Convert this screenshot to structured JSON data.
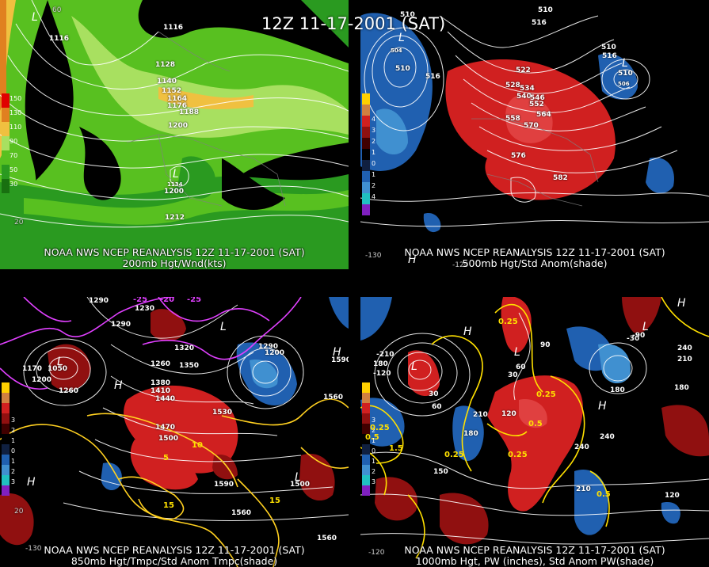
{
  "title": "12Z 11-17-2001 (SAT)",
  "panels": [
    {
      "line1": "NOAA NWS NCEP REANALYSIS 12Z 11-17-2001 (SAT)",
      "line2": "200mb Hgt/Wnd(kts)",
      "scale": [
        "150",
        "130",
        "110",
        "90",
        "70",
        "50",
        "30"
      ],
      "contour_labels": [
        "1116",
        "1116",
        "1128",
        "1140",
        "1152",
        "1164",
        "1176",
        "1188",
        "1200",
        "1200",
        "1212",
        "1134",
        "1200"
      ],
      "lat_labels": [
        "60",
        "20"
      ]
    },
    {
      "line1": "NOAA NWS NCEP REANALYSIS 12Z 11-17-2001 (SAT)",
      "line2": "500mb Hgt/Std Anom(shade)",
      "scale": [
        "5",
        "4",
        "3",
        "2",
        "1",
        "0",
        "1",
        "2",
        "3",
        "4",
        "5"
      ],
      "contour_labels": [
        "510",
        "516",
        "510",
        "504",
        "510",
        "516",
        "522",
        "528",
        "534",
        "540",
        "546",
        "552",
        "558",
        "564",
        "570",
        "576",
        "582",
        "510",
        "516",
        "510",
        "506"
      ],
      "lat_labels": [
        "-130",
        "-120"
      ]
    },
    {
      "line1": "NOAA NWS NCEP REANALYSIS 12Z 11-17-2001 (SAT)",
      "line2": "850mb Hgt/Tmpc/Std Anom Tmpc(shade)",
      "scale": [
        "5",
        "4",
        "3",
        "2",
        "1",
        "0",
        "1",
        "2",
        "3",
        "4",
        "5"
      ],
      "contour_labels": [
        "1290",
        "1290",
        "1230",
        "1320",
        "1260",
        "1350",
        "1380",
        "1410",
        "1440",
        "1470",
        "1500",
        "1530",
        "1560",
        "1590",
        "1500",
        "1560",
        "1290",
        "1170",
        "1050",
        "1200",
        "1260",
        "1200",
        "1590",
        "1560"
      ],
      "temp_labels": [
        "-25",
        "-20",
        "-25",
        "15",
        "10",
        "5",
        "15"
      ],
      "lat_labels": [
        "20",
        "-130"
      ]
    },
    {
      "line1": "NOAA NWS NCEP REANALYSIS 12Z 11-17-2001 (SAT)",
      "line2": "1000mb Hgt, PW (inches), Std Anom PW(shade)",
      "scale": [
        "5",
        "4",
        "3",
        "2",
        "1",
        "0",
        "1",
        "2",
        "3",
        "4",
        "5"
      ],
      "contour_labels": [
        "-210",
        "180",
        "-120",
        "30",
        "60",
        "90",
        "210",
        "180",
        "240",
        "120",
        "150",
        "180",
        "210",
        "240",
        "180",
        "120",
        "-30",
        "240",
        "210",
        "60",
        "30",
        "-90"
      ],
      "pw_labels": [
        "0.25",
        "0.25",
        "0.5",
        "0.25",
        "0.25",
        "0.5",
        "0.5",
        "1.5",
        "0.25"
      ],
      "lat_labels": [
        "-120"
      ]
    }
  ],
  "colors": {
    "wind_light": "#a8e060",
    "wind_mid": "#58c020",
    "wind_dark": "#2a9a20",
    "wind_yellow": "#f0c040",
    "wind_orange": "#e08020",
    "anom_pos": "#d02020",
    "anom_pos_dark": "#901010",
    "anom_neg": "#2060b0",
    "anom_neg_light": "#4090d0",
    "contour": "#ffffff",
    "isotherm_warm": "#ffd020",
    "isotherm_cold": "#e040ff",
    "background": "#000000"
  }
}
